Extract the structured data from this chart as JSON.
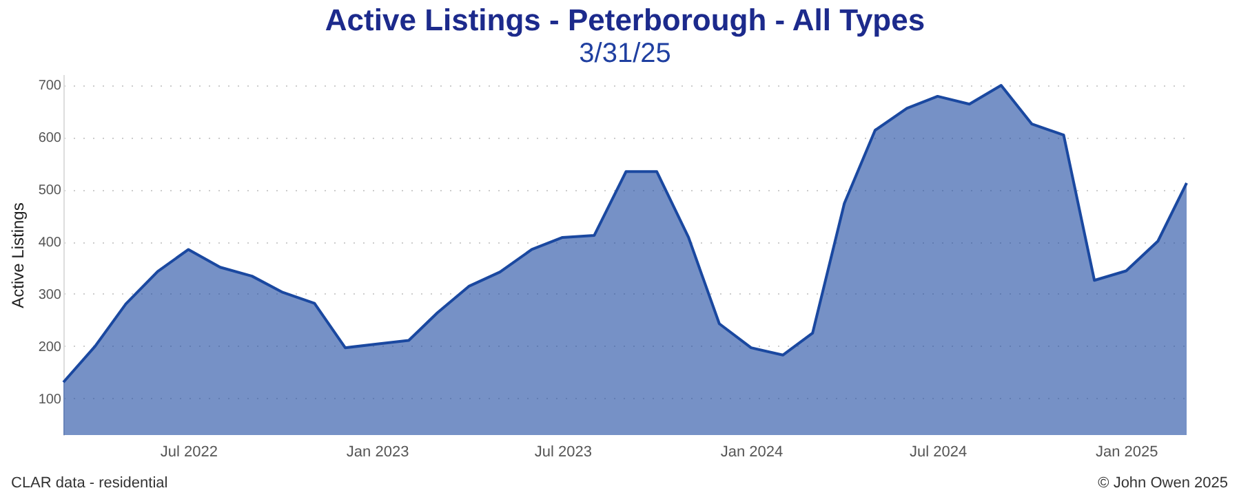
{
  "chart_data": {
    "type": "area",
    "title": "Active Listings - Peterborough - All Types",
    "subtitle": "3/31/25",
    "ylabel": "Active Listings",
    "x": [
      "2022-03",
      "2022-04",
      "2022-05",
      "2022-06",
      "2022-07",
      "2022-08",
      "2022-09",
      "2022-10",
      "2022-11",
      "2022-12",
      "2023-01",
      "2023-02",
      "2023-03",
      "2023-04",
      "2023-05",
      "2023-06",
      "2023-07",
      "2023-08",
      "2023-09",
      "2023-10",
      "2023-11",
      "2023-12",
      "2024-01",
      "2024-02",
      "2024-03",
      "2024-04",
      "2024-05",
      "2024-06",
      "2024-07",
      "2024-08",
      "2024-09",
      "2024-10",
      "2024-11",
      "2024-12",
      "2025-01",
      "2025-02",
      "2025-03"
    ],
    "series": [
      {
        "color": "#1a48a0",
        "values": [
          131,
          200,
          281,
          343,
          385,
          351,
          334,
          303,
          282,
          197,
          204,
          211,
          264,
          315,
          342,
          385,
          408,
          412,
          534,
          534,
          408,
          243,
          197,
          183,
          225,
          473,
          613,
          655,
          678,
          663,
          699,
          625,
          604,
          326,
          344,
          401,
          512
        ]
      }
    ],
    "xlim": [
      "2022-03",
      "2025-03"
    ],
    "xticks": [
      {
        "value": "2022-07",
        "label": "Jul 2022"
      },
      {
        "value": "2023-01",
        "label": "Jan 2023"
      },
      {
        "value": "2023-07",
        "label": "Jul 2023"
      },
      {
        "value": "2024-01",
        "label": "Jan 2024"
      },
      {
        "value": "2024-07",
        "label": "Jul 2024"
      },
      {
        "value": "2025-01",
        "label": "Jan 2025"
      }
    ],
    "ylim": [
      30,
      720
    ],
    "yticks": [
      100,
      200,
      300,
      400,
      500,
      600,
      700
    ],
    "grid": "y",
    "annotations": [
      "CLAR data - residential",
      "© John Owen 2025"
    ]
  }
}
